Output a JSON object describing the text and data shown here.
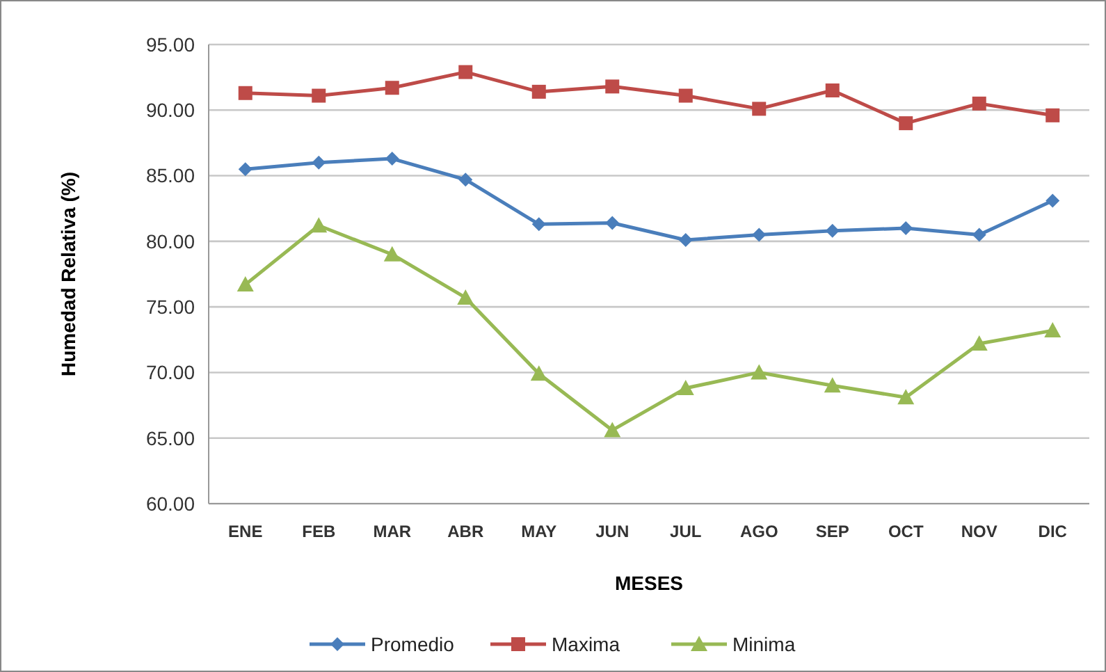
{
  "chart_data": {
    "type": "line",
    "xlabel": "MESES",
    "ylabel": "Humedad Relativa (%)",
    "categories": [
      "ENE",
      "FEB",
      "MAR",
      "ABR",
      "MAY",
      "JUN",
      "JUL",
      "AGO",
      "SEP",
      "OCT",
      "NOV",
      "DIC"
    ],
    "series": [
      {
        "name": "Promedio",
        "color": "#4a7ebb",
        "marker": "diamond",
        "values": [
          85.5,
          86.0,
          86.3,
          84.7,
          81.3,
          81.4,
          80.1,
          80.5,
          80.8,
          81.0,
          80.5,
          83.1
        ]
      },
      {
        "name": "Maxima",
        "color": "#be4b48",
        "marker": "square",
        "values": [
          91.3,
          91.1,
          91.7,
          92.9,
          91.4,
          91.8,
          91.1,
          90.1,
          91.5,
          89.0,
          90.5,
          89.6
        ]
      },
      {
        "name": "Minima",
        "color": "#98b954",
        "marker": "triangle",
        "values": [
          76.7,
          81.2,
          79.0,
          75.7,
          69.9,
          65.6,
          68.8,
          70.0,
          69.0,
          68.1,
          72.2,
          73.2
        ]
      }
    ],
    "ylim": [
      60,
      95
    ],
    "yticks": [
      {
        "value": 60,
        "label": "60.00"
      },
      {
        "value": 65,
        "label": "65.00"
      },
      {
        "value": 70,
        "label": "70.00"
      },
      {
        "value": 75,
        "label": "75.00"
      },
      {
        "value": 80,
        "label": "80.00"
      },
      {
        "value": 85,
        "label": "85.00"
      },
      {
        "value": 90,
        "label": "90.00"
      },
      {
        "value": 95,
        "label": "95.00"
      }
    ],
    "grid": "y",
    "legend": "bottom"
  }
}
